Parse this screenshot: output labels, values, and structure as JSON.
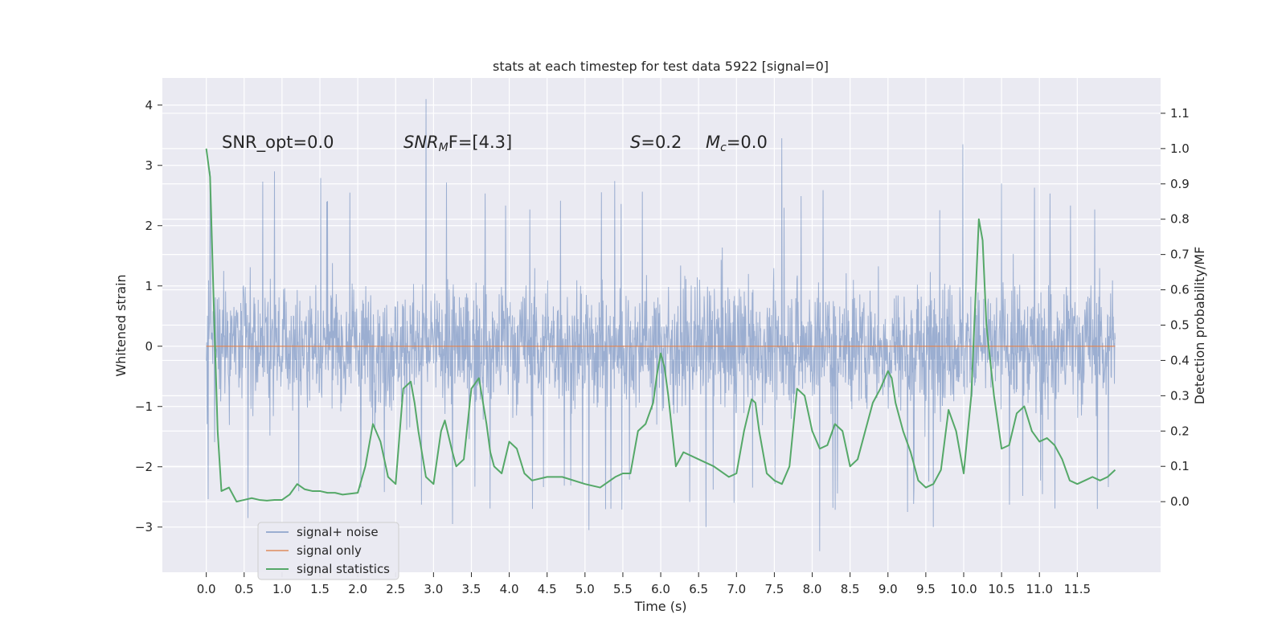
{
  "chart_data": {
    "type": "line",
    "title": "stats at each timestep for test data 5922 [signal=0]",
    "xlabel": "Time (s)",
    "ylabel": "Whitened strain",
    "ylabel_right": "Detection probability/MF",
    "xlim": [
      -0.58,
      12.6
    ],
    "ylim": [
      -3.75,
      4.45
    ],
    "ylim_right": [
      -0.2,
      1.2
    ],
    "x_ticks": [
      "0.0",
      "0.5",
      "1.0",
      "1.5",
      "2.0",
      "2.5",
      "3.0",
      "3.5",
      "4.0",
      "4.5",
      "5.0",
      "5.5",
      "6.0",
      "6.5",
      "7.0",
      "7.5",
      "8.0",
      "8.5",
      "9.0",
      "9.5",
      "10.0",
      "10.5",
      "11.0",
      "11.5"
    ],
    "y_ticks": [
      "4",
      "3",
      "2",
      "1",
      "0",
      "−1",
      "−2",
      "−3"
    ],
    "y_ticks_right": [
      "1.1",
      "1.0",
      "0.9",
      "0.8",
      "0.7",
      "0.6",
      "0.5",
      "0.4",
      "0.3",
      "0.2",
      "0.1",
      "0.0"
    ],
    "annotations": {
      "snr_opt": "SNR_opt=0.0",
      "snr_mf_main": "SNR",
      "snr_mf_sub": "M",
      "snr_mf_rest": "F=[4.3]",
      "s_sym": "S",
      "s_val": "=0.2",
      "mc_main": "M",
      "mc_sub": "c",
      "mc_val": "=0.0"
    },
    "legend": {
      "position": "lower-left",
      "entries": [
        "signal+ noise",
        "signal only",
        "signal statistics"
      ]
    },
    "colors": {
      "background": "#eaeaf2",
      "grid": "#ffffff",
      "noise": "#4c72b0",
      "signal": "#dd8452",
      "statistics": "#55a868"
    },
    "series": [
      {
        "name": "signal+ noise",
        "axis": "left",
        "note": "dense whitened strain trace; envelope values estimated",
        "x_range": [
          0.0,
          12.0
        ],
        "typical_min": -2.0,
        "typical_max": 2.1,
        "extreme_max": 4.1,
        "extreme_min": -3.4,
        "peaks": [
          {
            "x": 2.9,
            "y": 4.1
          },
          {
            "x": 7.6,
            "y": 3.45
          },
          {
            "x": 9.99,
            "y": 3.35
          },
          {
            "x": 0.9,
            "y": 2.9
          },
          {
            "x": 0.05,
            "y": 2.9
          },
          {
            "x": 10.5,
            "y": 2.7
          },
          {
            "x": 8.1,
            "y": -3.4
          },
          {
            "x": 5.05,
            "y": -3.05
          },
          {
            "x": 3.25,
            "y": -2.95
          },
          {
            "x": 9.6,
            "y": -3.0
          },
          {
            "x": 0.55,
            "y": -2.85
          },
          {
            "x": 6.6,
            "y": -3.0
          }
        ]
      },
      {
        "name": "signal only",
        "axis": "left",
        "x": [
          0.0,
          12.0
        ],
        "y": [
          0.0,
          0.0
        ]
      },
      {
        "name": "signal statistics",
        "axis": "right",
        "x": [
          0.0,
          0.05,
          0.1,
          0.15,
          0.2,
          0.3,
          0.4,
          0.5,
          0.6,
          0.7,
          0.8,
          0.9,
          1.0,
          1.1,
          1.2,
          1.3,
          1.4,
          1.5,
          1.6,
          1.7,
          1.8,
          2.0,
          2.1,
          2.2,
          2.3,
          2.4,
          2.5,
          2.6,
          2.7,
          2.75,
          2.8,
          2.9,
          3.0,
          3.1,
          3.15,
          3.25,
          3.3,
          3.4,
          3.5,
          3.6,
          3.7,
          3.75,
          3.8,
          3.9,
          4.0,
          4.1,
          4.2,
          4.3,
          4.5,
          4.7,
          5.0,
          5.2,
          5.4,
          5.5,
          5.6,
          5.7,
          5.8,
          5.9,
          5.95,
          6.0,
          6.05,
          6.1,
          6.2,
          6.3,
          6.5,
          6.7,
          6.9,
          7.0,
          7.1,
          7.2,
          7.25,
          7.3,
          7.4,
          7.5,
          7.6,
          7.7,
          7.8,
          7.9,
          8.0,
          8.1,
          8.2,
          8.3,
          8.4,
          8.5,
          8.6,
          8.7,
          8.8,
          8.9,
          9.0,
          9.05,
          9.1,
          9.2,
          9.3,
          9.4,
          9.5,
          9.6,
          9.7,
          9.8,
          9.9,
          10.0,
          10.1,
          10.2,
          10.25,
          10.3,
          10.4,
          10.5,
          10.6,
          10.7,
          10.8,
          10.9,
          11.0,
          11.1,
          11.2,
          11.3,
          11.4,
          11.5,
          11.6,
          11.7,
          11.8,
          11.9,
          12.0
        ],
        "y": [
          1.0,
          0.92,
          0.55,
          0.2,
          0.03,
          0.04,
          0.0,
          0.005,
          0.01,
          0.005,
          0.003,
          0.005,
          0.005,
          0.02,
          0.05,
          0.035,
          0.03,
          0.03,
          0.025,
          0.025,
          0.02,
          0.025,
          0.1,
          0.22,
          0.17,
          0.07,
          0.05,
          0.32,
          0.34,
          0.28,
          0.2,
          0.07,
          0.05,
          0.2,
          0.23,
          0.14,
          0.1,
          0.12,
          0.32,
          0.35,
          0.22,
          0.14,
          0.1,
          0.08,
          0.17,
          0.15,
          0.08,
          0.06,
          0.07,
          0.07,
          0.05,
          0.04,
          0.07,
          0.08,
          0.08,
          0.2,
          0.22,
          0.28,
          0.36,
          0.42,
          0.38,
          0.3,
          0.1,
          0.14,
          0.12,
          0.1,
          0.07,
          0.08,
          0.2,
          0.29,
          0.28,
          0.2,
          0.08,
          0.06,
          0.05,
          0.1,
          0.32,
          0.3,
          0.2,
          0.15,
          0.16,
          0.22,
          0.2,
          0.1,
          0.12,
          0.2,
          0.28,
          0.32,
          0.37,
          0.35,
          0.28,
          0.2,
          0.14,
          0.06,
          0.04,
          0.05,
          0.09,
          0.26,
          0.2,
          0.08,
          0.3,
          0.8,
          0.74,
          0.5,
          0.3,
          0.15,
          0.16,
          0.25,
          0.27,
          0.2,
          0.17,
          0.18,
          0.16,
          0.12,
          0.06,
          0.05,
          0.06,
          0.07,
          0.06,
          0.07,
          0.09
        ]
      }
    ]
  }
}
